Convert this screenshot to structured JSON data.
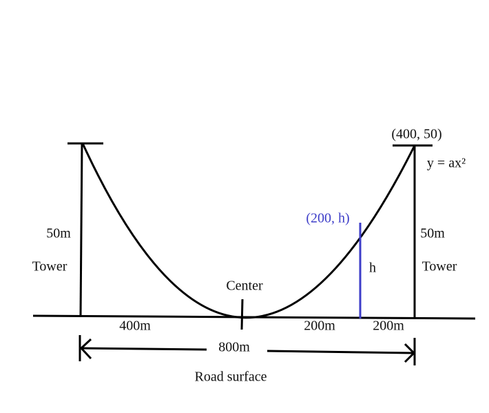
{
  "labels": {
    "tower_top_point": "(400, 50)",
    "equation": "y = ax²",
    "point_h": "(200, h)",
    "left_height": "50m",
    "left_tower": "Tower",
    "right_height": "50m",
    "right_tower": "Tower",
    "h": "h",
    "center": "Center",
    "left_span": "400m",
    "mid_span": "200m",
    "right_span": "200m",
    "total_span": "800m",
    "road": "Road surface"
  }
}
